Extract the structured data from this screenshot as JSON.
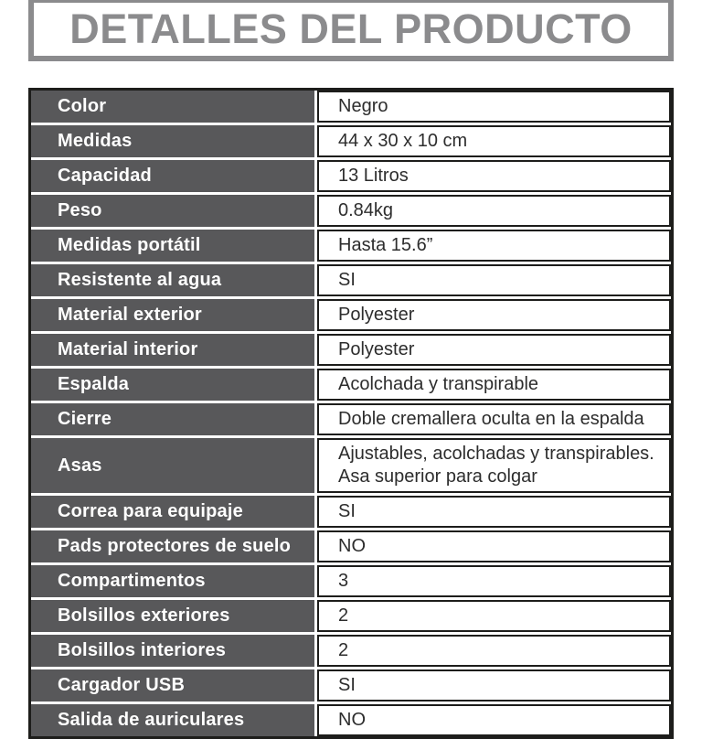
{
  "header": {
    "title": "DETALLES DEL PRODUCTO"
  },
  "colors": {
    "title_gray": "#8b8b8d",
    "label_cell_bg": "#58585a",
    "table_border_black": "#1d1d1b",
    "value_text": "#2d2d2d"
  },
  "table": {
    "rows": [
      {
        "label": "Color",
        "value": "Negro"
      },
      {
        "label": "Medidas",
        "value": "44 x 30 x 10 cm"
      },
      {
        "label": "Capacidad",
        "value": "13 Litros"
      },
      {
        "label": "Peso",
        "value": "0.84kg"
      },
      {
        "label": "Medidas portátil",
        "value": "Hasta 15.6”"
      },
      {
        "label": "Resistente al agua",
        "value": "SI"
      },
      {
        "label": "Material exterior",
        "value": "Polyester"
      },
      {
        "label": "Material interior",
        "value": "Polyester"
      },
      {
        "label": "Espalda",
        "value": "Acolchada y transpirable"
      },
      {
        "label": "Cierre",
        "value": "Doble cremallera oculta en la espalda"
      },
      {
        "label": "Asas",
        "value": "Ajustables, acolchadas y transpirables. Asa superior para colgar"
      },
      {
        "label": "Correa para equipaje",
        "value": "SI"
      },
      {
        "label": "Pads protectores de suelo",
        "value": "NO"
      },
      {
        "label": "Compartimentos",
        "value": "3"
      },
      {
        "label": "Bolsillos exteriores",
        "value": "2"
      },
      {
        "label": "Bolsillos interiores",
        "value": "2"
      },
      {
        "label": "Cargador USB",
        "value": "SI"
      },
      {
        "label": "Salida de auriculares",
        "value": "NO"
      }
    ]
  }
}
